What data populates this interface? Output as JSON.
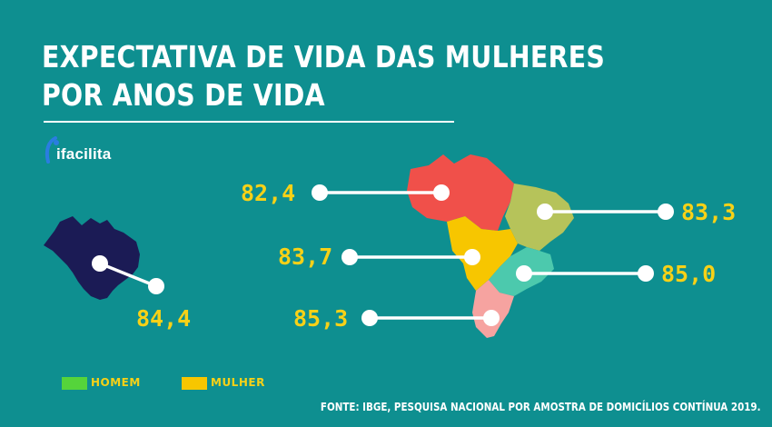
{
  "title_line1": "EXPECTATIVA DE VIDA DAS MULHERES",
  "title_line2": "POR ANOS DE VIDA",
  "logo": {
    "text": "ifacilita",
    "icon": "ifacilita-logo-icon"
  },
  "source": "FONTE: IBGE, PESQUISA NACIONAL POR AMOSTRA DE DOMICÍLIOS CONTÍNUA 2019.",
  "colors": {
    "background": "#0e8f90",
    "accent_text": "#f7d117",
    "brazil": "#1b1b55",
    "norte": "#f0504a",
    "nordeste": "#b6c35a",
    "centro_oeste": "#f7c600",
    "sudeste": "#4cc9ad",
    "sul": "#f6a3a0"
  },
  "legend": [
    {
      "label": "HOMEM",
      "color": "#55d43b"
    },
    {
      "label": "MULHER",
      "color": "#f7c600"
    }
  ],
  "chart_data": {
    "type": "map",
    "series": [
      {
        "name": "MULHER",
        "values": [
          {
            "region": "Brasil",
            "label": "84,4",
            "value": 84.4
          },
          {
            "region": "Norte",
            "label": "82,4",
            "value": 82.4
          },
          {
            "region": "Nordeste",
            "label": "83,3",
            "value": 83.3
          },
          {
            "region": "Centro-Oeste",
            "label": "83,7",
            "value": 83.7
          },
          {
            "region": "Sudeste",
            "label": "85,0",
            "value": 85.0
          },
          {
            "region": "Sul",
            "label": "85,3",
            "value": 85.3
          }
        ]
      }
    ]
  }
}
